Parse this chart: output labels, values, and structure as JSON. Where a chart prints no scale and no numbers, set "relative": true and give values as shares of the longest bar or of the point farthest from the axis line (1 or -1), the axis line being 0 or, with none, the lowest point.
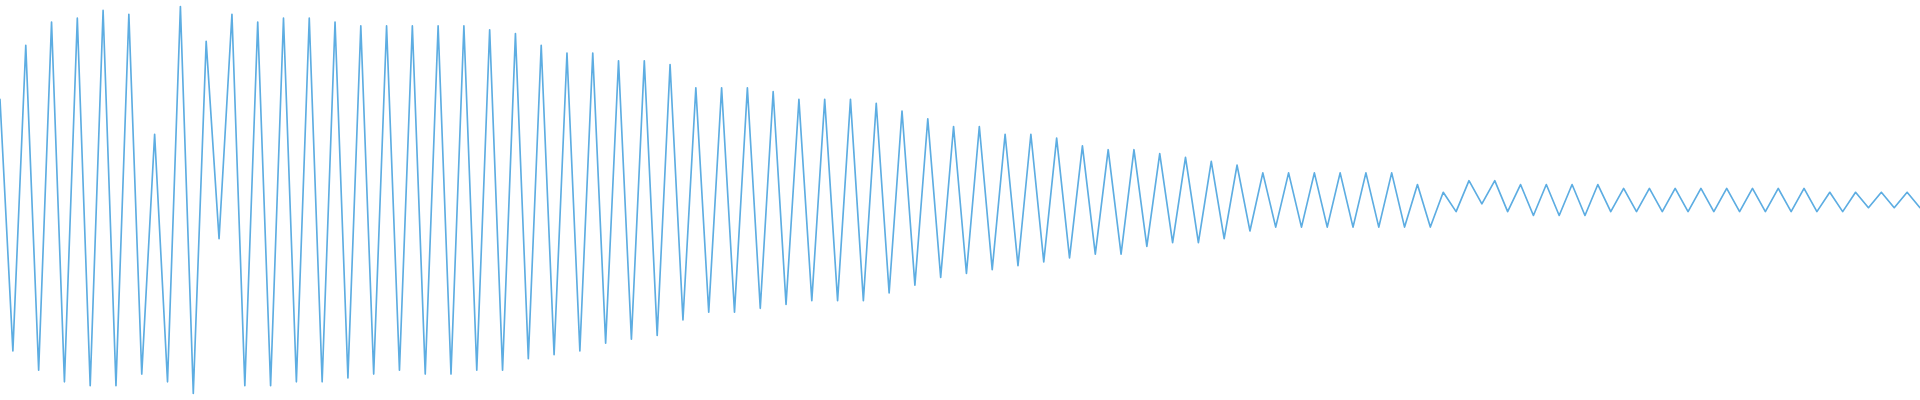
{
  "chart_data": {
    "type": "line",
    "relative": true,
    "tick_labels": false,
    "categories": [
      null,
      null,
      null,
      null,
      null,
      null,
      null,
      null,
      null,
      null,
      null,
      null,
      null,
      null,
      null,
      null,
      null,
      null,
      null,
      null,
      null,
      null,
      null,
      null,
      null,
      null,
      null,
      null,
      null,
      null,
      null,
      null,
      null,
      null,
      null,
      null,
      null,
      null,
      null,
      null,
      null,
      null,
      null,
      null,
      null,
      null,
      null,
      null,
      null,
      null,
      null,
      null,
      null,
      null,
      null,
      null,
      null,
      null,
      null,
      null,
      null,
      null,
      null,
      null,
      null,
      null,
      null,
      null,
      null,
      null,
      null,
      null,
      null,
      null,
      null,
      null,
      null,
      null,
      null,
      null,
      null,
      null,
      null,
      null,
      null,
      null,
      null,
      null,
      null,
      null,
      null,
      null,
      null,
      null,
      null,
      null,
      null,
      null,
      null,
      null,
      null,
      null,
      null,
      null,
      null,
      null,
      null,
      null,
      null,
      null,
      null,
      null,
      null,
      null,
      null,
      null,
      null,
      null,
      null,
      null,
      null,
      null,
      null,
      null,
      null,
      null,
      null,
      null,
      null,
      null,
      null,
      null,
      null,
      null,
      null,
      null,
      null,
      null,
      null,
      null,
      null,
      null,
      null,
      null,
      null,
      null,
      null,
      null,
      null,
      null
    ],
    "series": [
      {
        "color": "#5dade2",
        "values": [
          0.76,
          0.11,
          0.9,
          0.06,
          0.96,
          0.03,
          0.97,
          0.02,
          0.99,
          0.02,
          0.98,
          0.05,
          0.67,
          0.03,
          1.0,
          0.0,
          0.91,
          0.4,
          0.98,
          0.02,
          0.96,
          0.02,
          0.97,
          0.03,
          0.97,
          0.03,
          0.96,
          0.04,
          0.95,
          0.05,
          0.95,
          0.06,
          0.95,
          0.05,
          0.95,
          0.05,
          0.95,
          0.06,
          0.94,
          0.06,
          0.93,
          0.09,
          0.9,
          0.1,
          0.88,
          0.11,
          0.88,
          0.13,
          0.86,
          0.14,
          0.86,
          0.15,
          0.85,
          0.19,
          0.79,
          0.21,
          0.79,
          0.21,
          0.79,
          0.22,
          0.78,
          0.23,
          0.76,
          0.24,
          0.76,
          0.24,
          0.76,
          0.24,
          0.75,
          0.26,
          0.73,
          0.28,
          0.71,
          0.3,
          0.69,
          0.31,
          0.69,
          0.32,
          0.67,
          0.33,
          0.67,
          0.34,
          0.66,
          0.35,
          0.64,
          0.36,
          0.63,
          0.36,
          0.63,
          0.38,
          0.62,
          0.39,
          0.61,
          0.39,
          0.6,
          0.4,
          0.59,
          0.42,
          0.57,
          0.43,
          0.57,
          0.43,
          0.57,
          0.43,
          0.57,
          0.43,
          0.57,
          0.43,
          0.57,
          0.43,
          0.54,
          0.43,
          0.52,
          0.47,
          0.55,
          0.49,
          0.55,
          0.47,
          0.54,
          0.46,
          0.54,
          0.46,
          0.54,
          0.46,
          0.54,
          0.47,
          0.53,
          0.47,
          0.53,
          0.47,
          0.53,
          0.47,
          0.53,
          0.47,
          0.53,
          0.47,
          0.53,
          0.47,
          0.53,
          0.47,
          0.53,
          0.47,
          0.52,
          0.47,
          0.52,
          0.48,
          0.52,
          0.48,
          0.52,
          0.48
        ]
      }
    ]
  }
}
